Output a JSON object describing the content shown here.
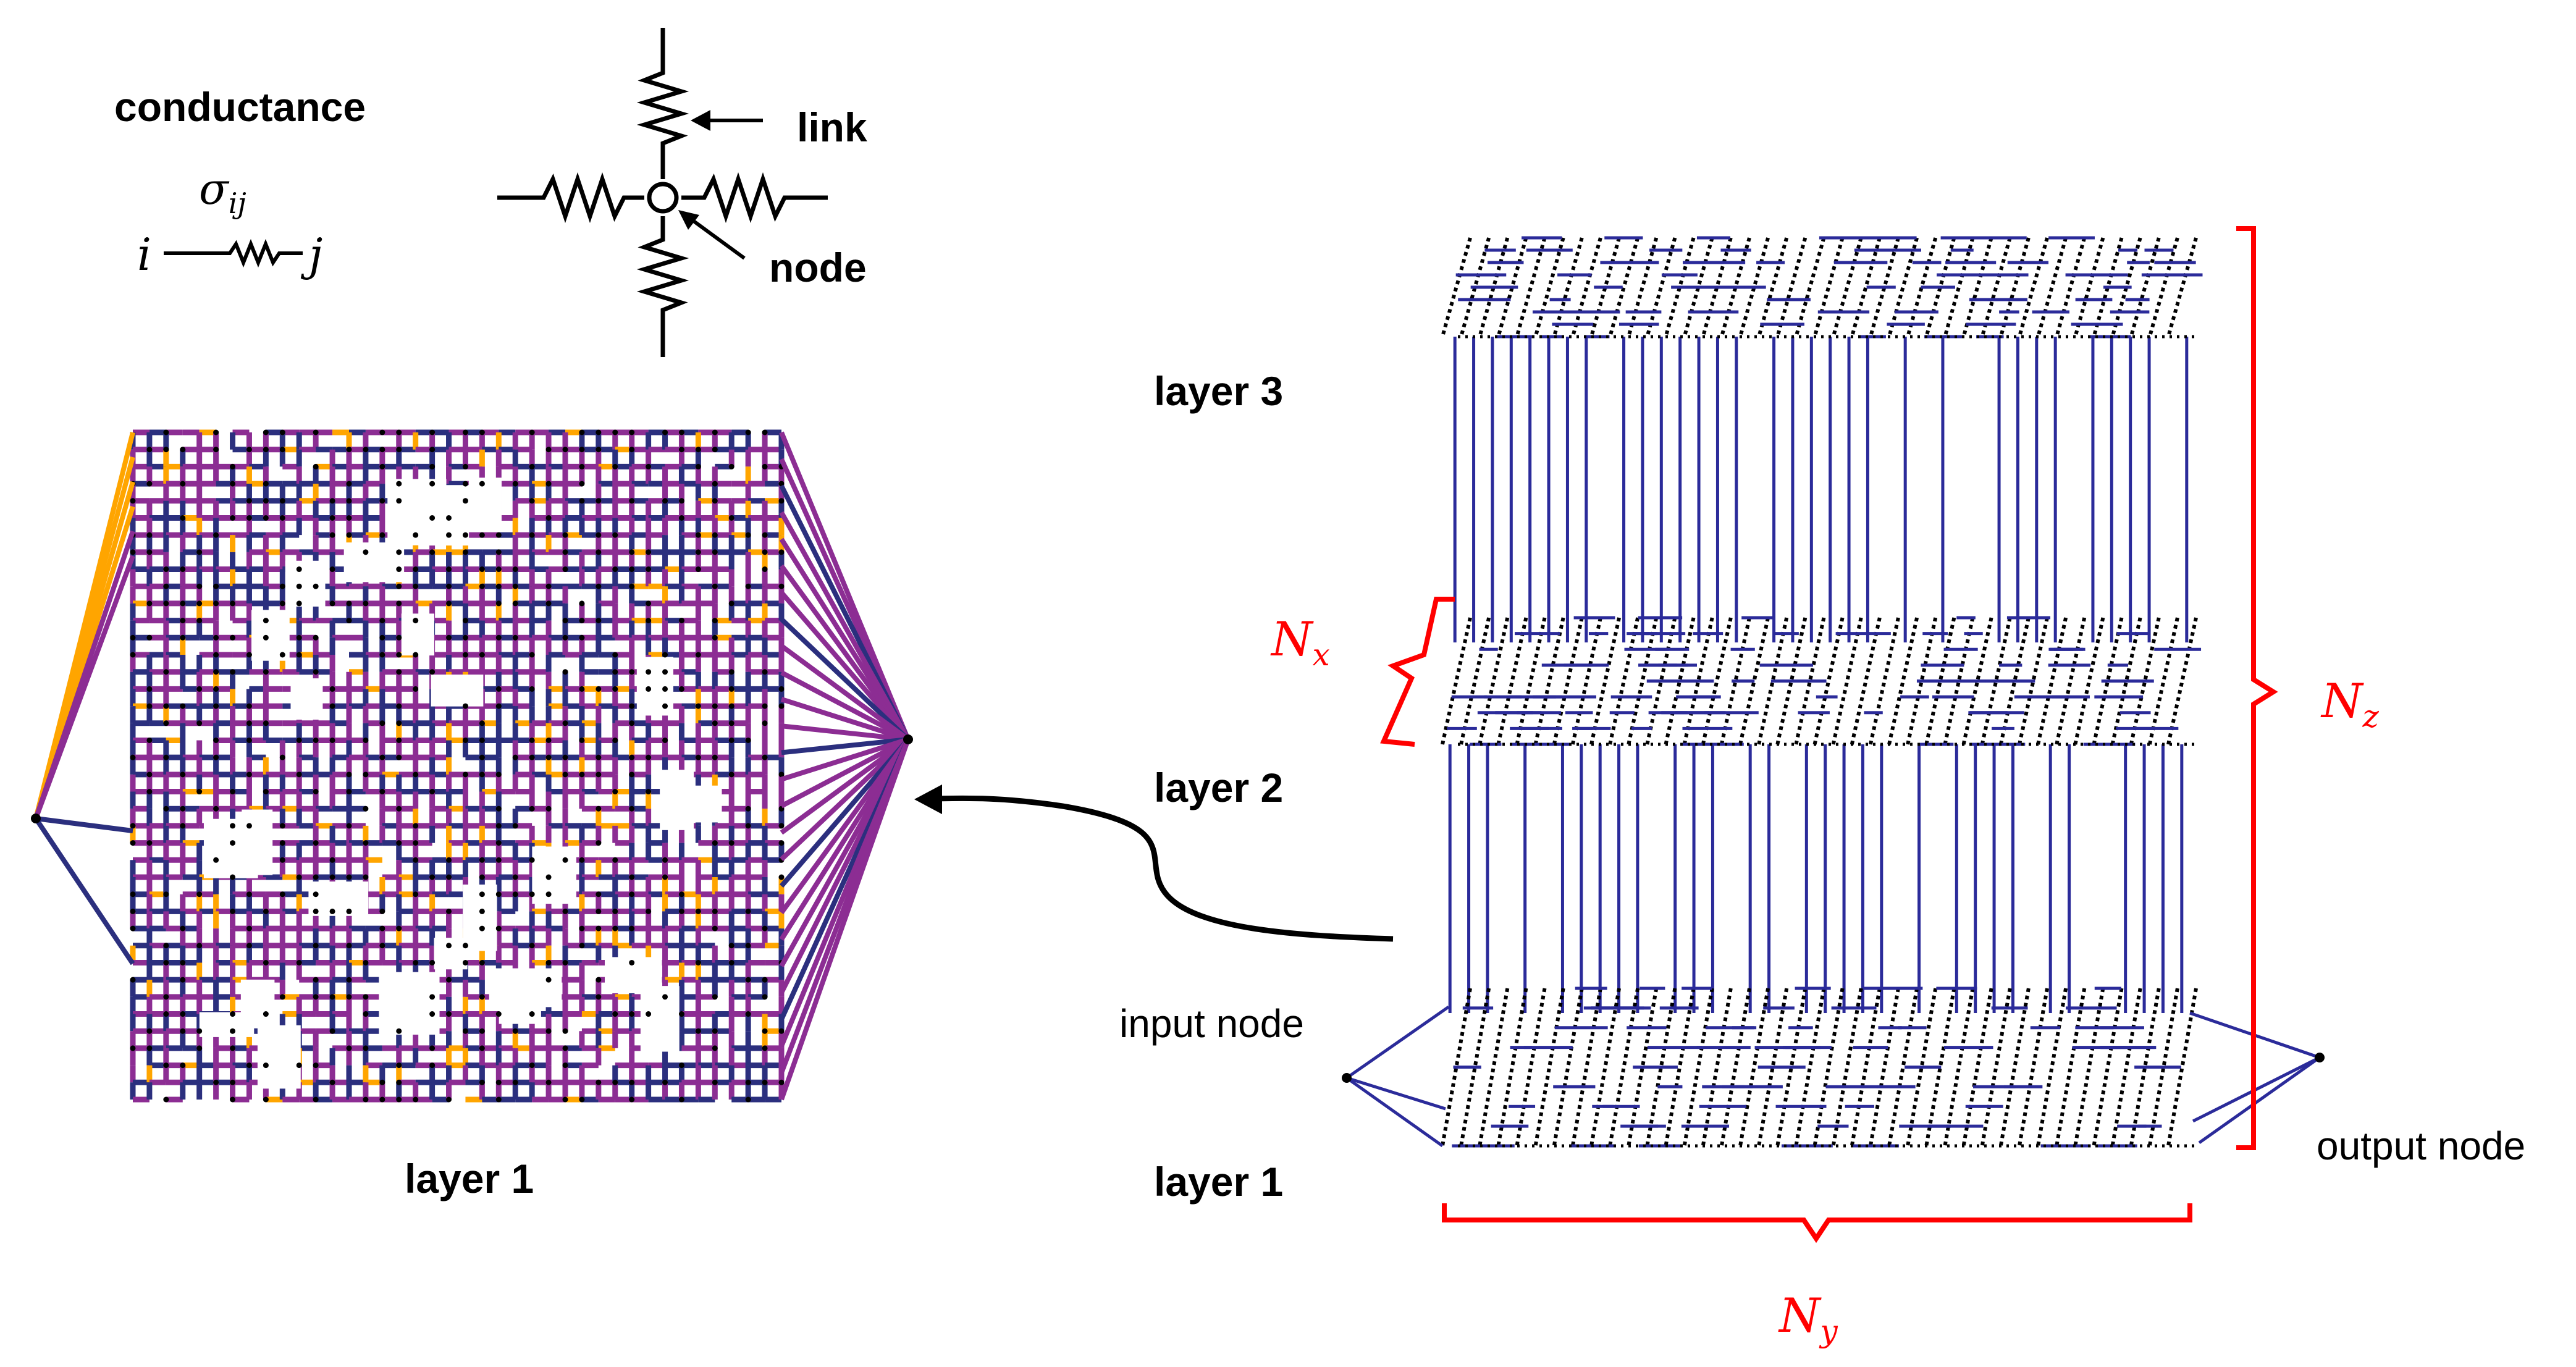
{
  "legend": {
    "conductance_title": "conductance",
    "sigma_symbol": "σ",
    "sigma_subscript": "ij",
    "node_i": "i",
    "node_j": "j",
    "link_label": "link",
    "node_label": "node"
  },
  "left_panel": {
    "caption": "layer 1"
  },
  "right_panel": {
    "layer_labels": [
      "layer 3",
      "layer 2",
      "layer 1"
    ],
    "input_node_label": "input node",
    "output_node_label": "output node",
    "dim_x": {
      "base": "N",
      "sub": "x"
    },
    "dim_y": {
      "base": "N",
      "sub": "y"
    },
    "dim_z": {
      "base": "N",
      "sub": "z"
    }
  },
  "colors": {
    "dark_link": "#2b2f7e",
    "magenta_link": "#8c2d93",
    "orange_link": "#ffa500",
    "node_dot": "#000000",
    "dimension_bracket": "#ff0000",
    "pillar_link": "#2b2b9a"
  }
}
